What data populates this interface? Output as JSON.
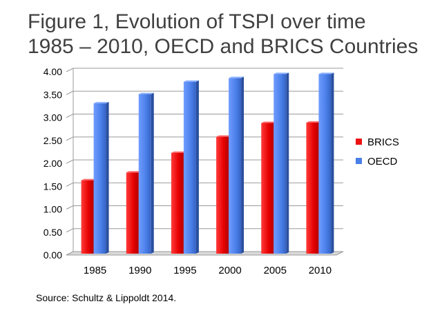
{
  "title_line1": "Figure 1, Evolution of TSPI over time",
  "title_line2": "1985 – 2010, OECD and BRICS Countries",
  "source": "Source: Schultz & Lippoldt 2014.",
  "chart_data": {
    "type": "bar",
    "title": "Figure 1, Evolution of TSPI over time 1985 – 2010, OECD and BRICS Countries",
    "categories": [
      "1985",
      "1990",
      "1995",
      "2000",
      "2005",
      "2010"
    ],
    "series": [
      {
        "name": "BRICS",
        "color": "#ee1111",
        "values": [
          1.63,
          1.8,
          2.23,
          2.58,
          2.88,
          2.89
        ]
      },
      {
        "name": "OECD",
        "color": "#4a7fe8",
        "values": [
          3.31,
          3.51,
          3.78,
          3.86,
          3.95,
          3.95
        ]
      }
    ],
    "ylim": [
      0,
      4
    ],
    "yticks": [
      "0.00",
      "0.50",
      "1.00",
      "1.50",
      "2.00",
      "2.50",
      "3.00",
      "3.50",
      "4.00"
    ],
    "xlabel": "",
    "ylabel": "",
    "grid": true,
    "legend": "right"
  }
}
